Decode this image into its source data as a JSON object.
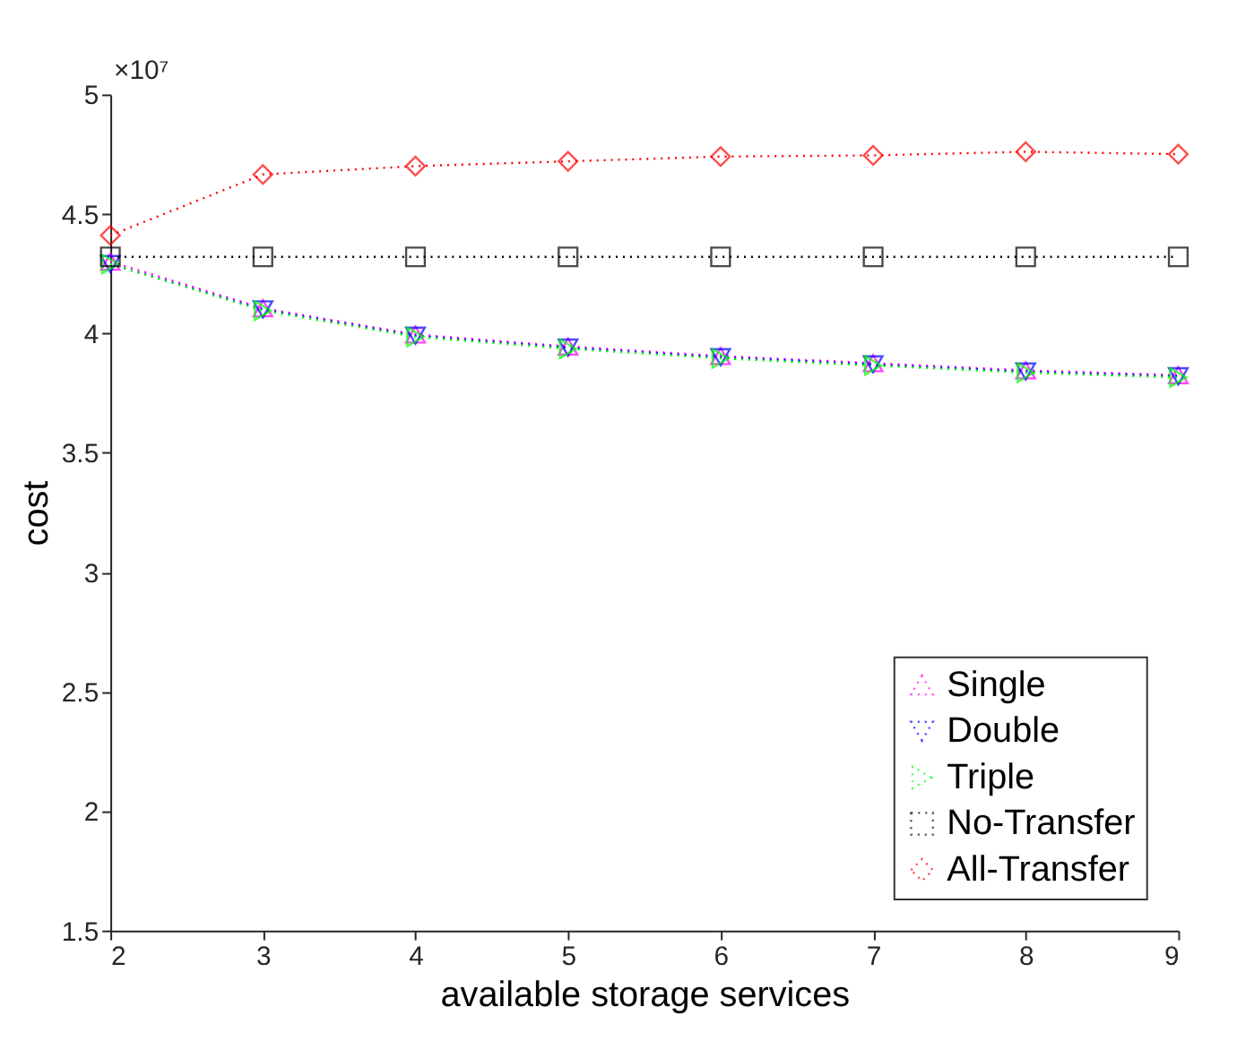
{
  "chart_data": {
    "type": "line",
    "xlabel": "available storage services",
    "ylabel": "cost",
    "x": [
      2,
      3,
      4,
      5,
      6,
      7,
      8,
      9
    ],
    "series": [
      {
        "name": "Single",
        "color": "#ff00ff",
        "marker": "triangle-up",
        "values": [
          4.3,
          4.105,
          3.995,
          3.945,
          3.905,
          3.875,
          3.845,
          3.825
        ]
      },
      {
        "name": "Double",
        "color": "#0000ff",
        "marker": "triangle-down",
        "values": [
          4.29,
          4.1,
          3.99,
          3.94,
          3.9,
          3.87,
          3.84,
          3.82
        ]
      },
      {
        "name": "Triple",
        "color": "#00ff00",
        "marker": "triangle-right",
        "values": [
          4.29,
          4.095,
          3.985,
          3.935,
          3.895,
          3.865,
          3.835,
          3.815
        ]
      },
      {
        "name": "No-Transfer",
        "color": "#000000",
        "marker": "square",
        "values": [
          4.32,
          4.32,
          4.32,
          4.32,
          4.32,
          4.32,
          4.32,
          4.32
        ]
      },
      {
        "name": "All-Transfer",
        "color": "#ff0000",
        "marker": "diamond",
        "values": [
          4.41,
          4.665,
          4.7,
          4.72,
          4.74,
          4.745,
          4.76,
          4.75
        ]
      }
    ],
    "xlim": [
      2,
      9
    ],
    "xticks": [
      2,
      3,
      4,
      5,
      6,
      7,
      8,
      9
    ],
    "ylim": [
      1.5,
      5
    ],
    "yticks": [
      1.5,
      2,
      2.5,
      3,
      3.5,
      4,
      4.5,
      5
    ],
    "annotations": [
      "×10⁷"
    ],
    "grid": false,
    "legend": "bottom right",
    "line_style": "dotted"
  }
}
